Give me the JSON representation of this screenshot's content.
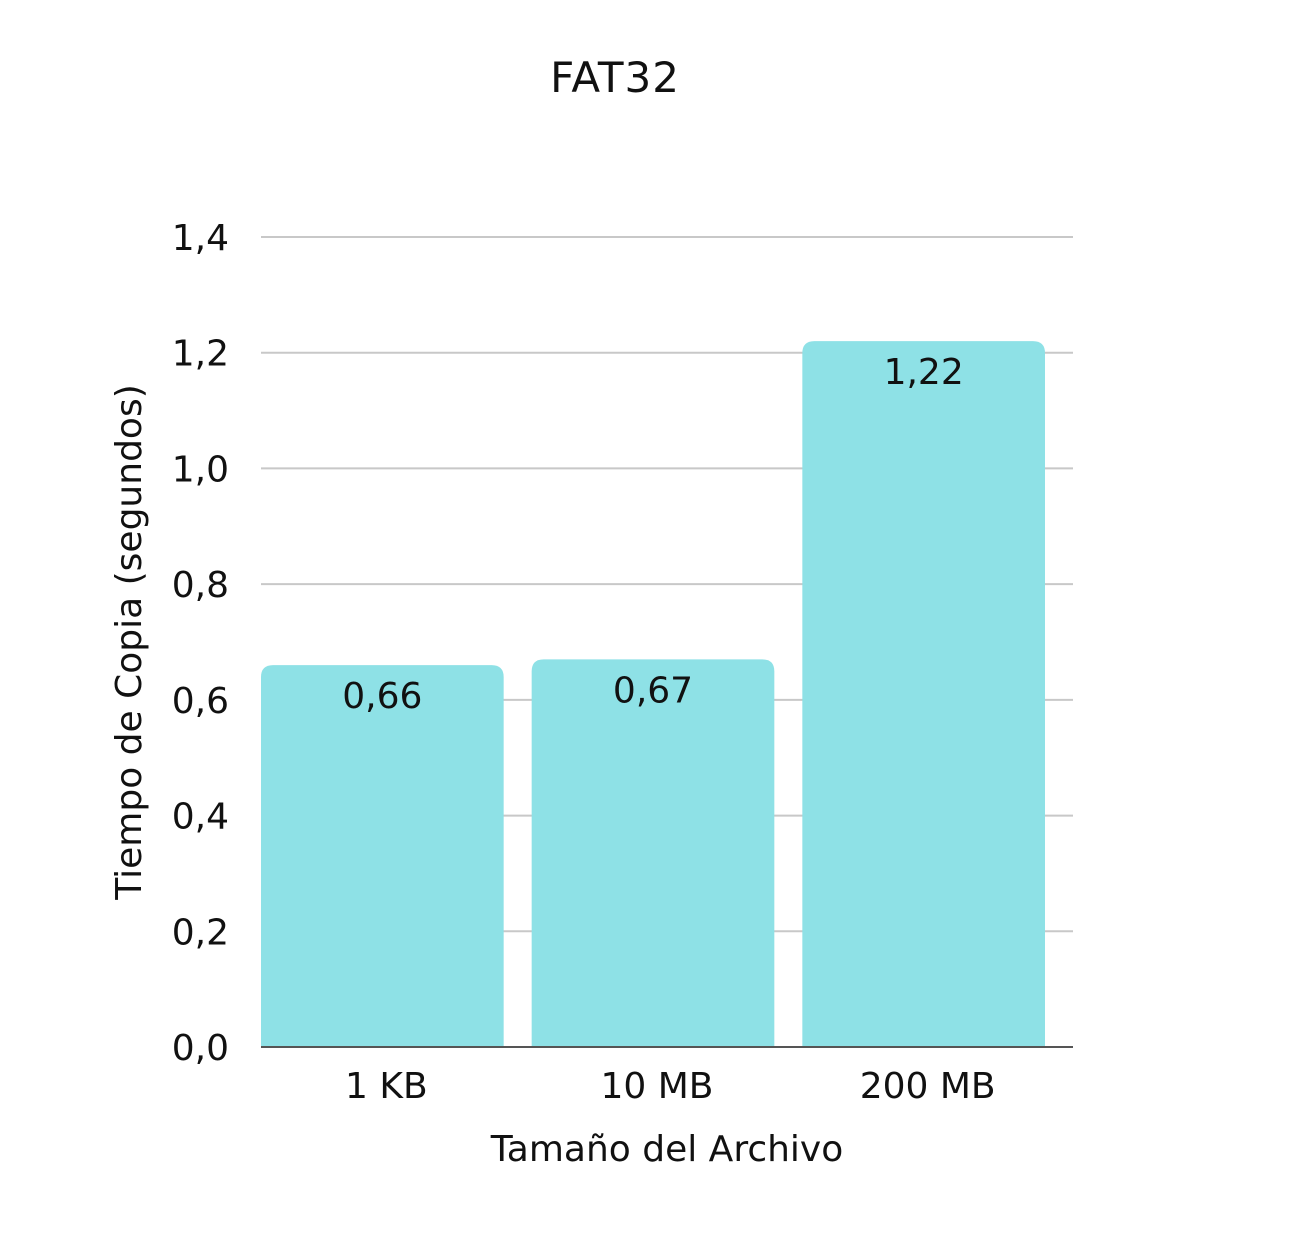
{
  "chart_data": {
    "type": "bar",
    "title": "FAT32",
    "xlabel": "Tamaño del Archivo",
    "ylabel": "Tiempo de Copia (segundos)",
    "categories": [
      "1 KB",
      "10 MB",
      "200 MB"
    ],
    "values": [
      0.66,
      0.67,
      1.22
    ],
    "data_labels": [
      "0,66",
      "0,67",
      "1,22"
    ],
    "ylim": [
      0,
      1.4
    ],
    "yticks": [
      0,
      0.2,
      0.4,
      0.6,
      0.8,
      1.0,
      1.2,
      1.4
    ],
    "ytick_labels": [
      "0,0",
      "0,2",
      "0,4",
      "0,6",
      "0,8",
      "1,0",
      "1,2",
      "1,4"
    ],
    "grid": true,
    "legend": "none",
    "colors": {
      "bar": "#8ee1e6",
      "grid": "#c8c8c8",
      "axis": "#555555",
      "text": "#111111"
    }
  }
}
